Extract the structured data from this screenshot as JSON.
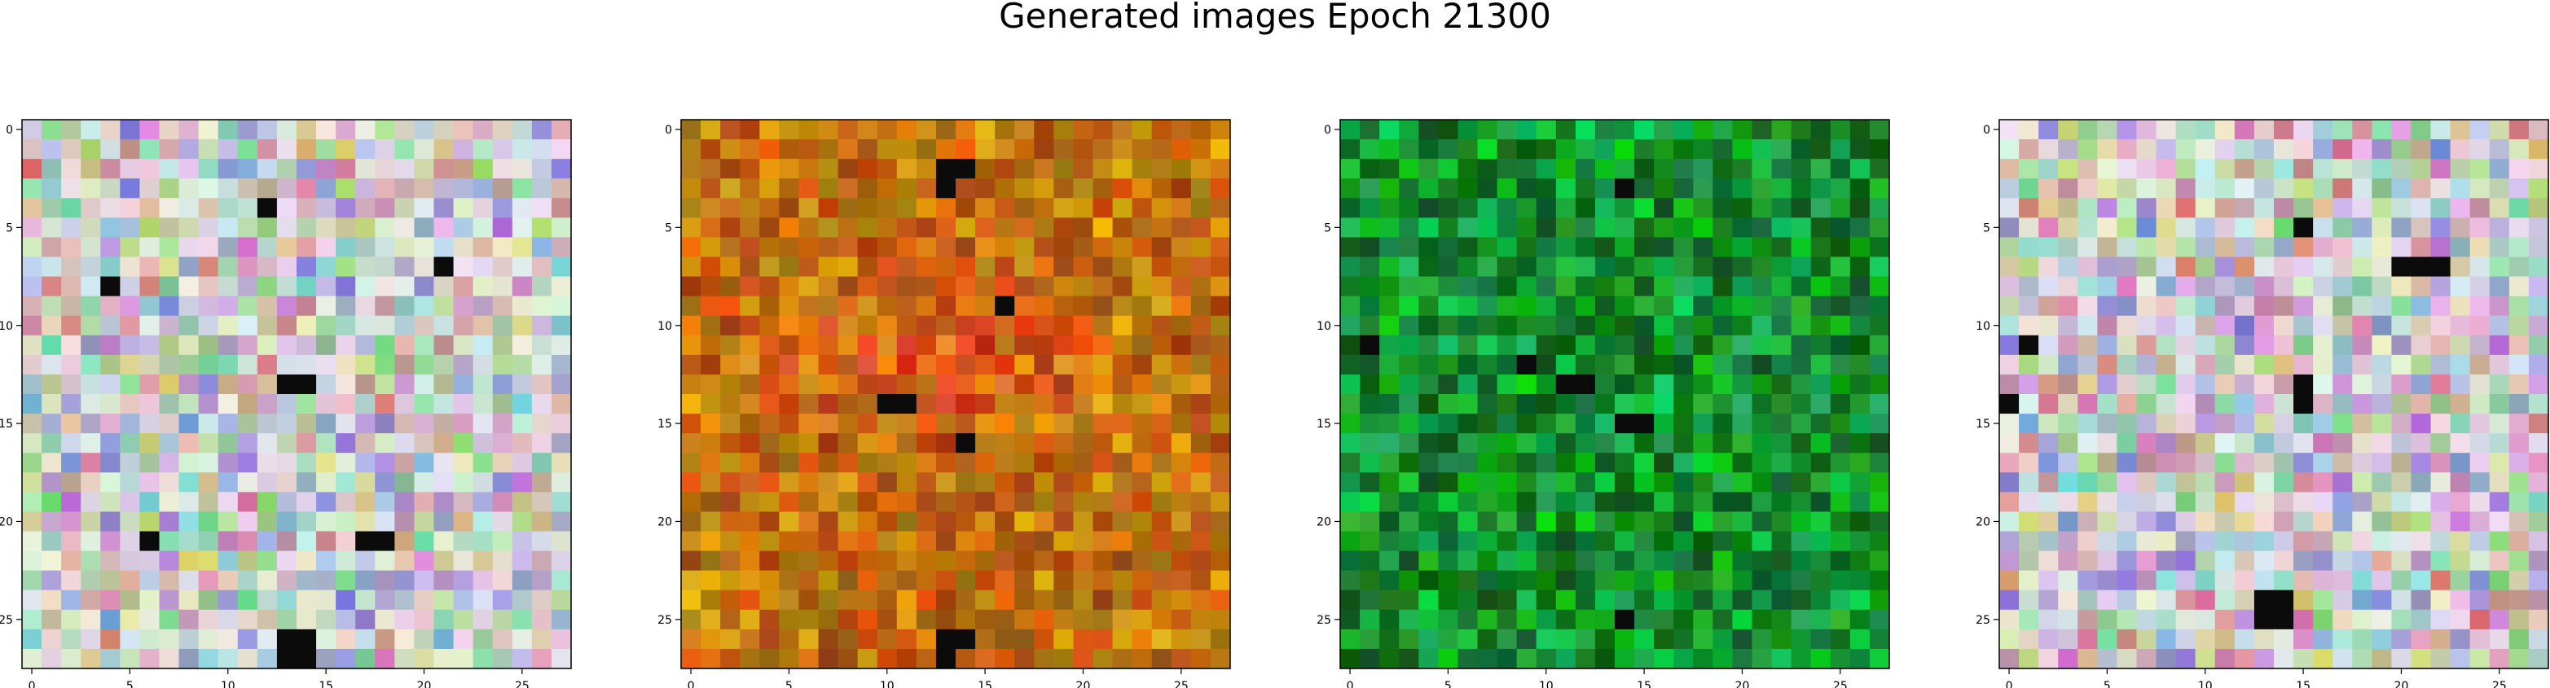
{
  "figure": {
    "title": "Generated images Epoch 21300"
  },
  "chart_data": [
    {
      "type": "heatmap",
      "title": "",
      "xlabel": "",
      "ylabel": "",
      "xticks": [
        "0",
        "5",
        "10",
        "15",
        "20",
        "25"
      ],
      "yticks": [
        "0",
        "5",
        "10",
        "15",
        "20",
        "25"
      ],
      "size": 28,
      "palette": "pastel",
      "dark_cells": [
        [
          26,
          13
        ],
        [
          26,
          14
        ],
        [
          27,
          13
        ],
        [
          27,
          14
        ],
        [
          21,
          6
        ],
        [
          21,
          17
        ],
        [
          21,
          18
        ],
        [
          13,
          13
        ],
        [
          13,
          14
        ],
        [
          8,
          4
        ],
        [
          4,
          12
        ],
        [
          7,
          21
        ]
      ]
    },
    {
      "type": "heatmap",
      "title": "",
      "xlabel": "",
      "ylabel": "",
      "xticks": [
        "0",
        "5",
        "10",
        "15",
        "20",
        "25"
      ],
      "yticks": [
        "0",
        "5",
        "10",
        "15",
        "20",
        "25"
      ],
      "size": 28,
      "palette": "orange",
      "dark_cells": [
        [
          2,
          13
        ],
        [
          3,
          13
        ],
        [
          2,
          14
        ],
        [
          26,
          13
        ],
        [
          27,
          13
        ],
        [
          26,
          14
        ],
        [
          14,
          10
        ],
        [
          14,
          11
        ],
        [
          9,
          16
        ],
        [
          16,
          14
        ]
      ]
    },
    {
      "type": "heatmap",
      "title": "",
      "xlabel": "",
      "ylabel": "",
      "xticks": [
        "0",
        "5",
        "10",
        "15",
        "20",
        "25"
      ],
      "yticks": [
        "0",
        "5",
        "10",
        "15",
        "20",
        "25"
      ],
      "size": 28,
      "palette": "green",
      "dark_cells": [
        [
          3,
          14
        ],
        [
          13,
          11
        ],
        [
          13,
          12
        ],
        [
          15,
          14
        ],
        [
          15,
          15
        ],
        [
          25,
          14
        ],
        [
          11,
          1
        ],
        [
          12,
          9
        ]
      ]
    },
    {
      "type": "heatmap",
      "title": "",
      "xlabel": "",
      "ylabel": "",
      "xticks": [
        "0",
        "5",
        "10",
        "15",
        "20",
        "25"
      ],
      "yticks": [
        "0",
        "5",
        "10",
        "15",
        "20",
        "25"
      ],
      "size": 28,
      "palette": "pastel",
      "dark_cells": [
        [
          5,
          15
        ],
        [
          13,
          15
        ],
        [
          14,
          15
        ],
        [
          24,
          13
        ],
        [
          24,
          14
        ],
        [
          25,
          13
        ],
        [
          25,
          14
        ],
        [
          7,
          20
        ],
        [
          7,
          21
        ],
        [
          7,
          22
        ],
        [
          11,
          1
        ],
        [
          14,
          0
        ]
      ]
    }
  ]
}
